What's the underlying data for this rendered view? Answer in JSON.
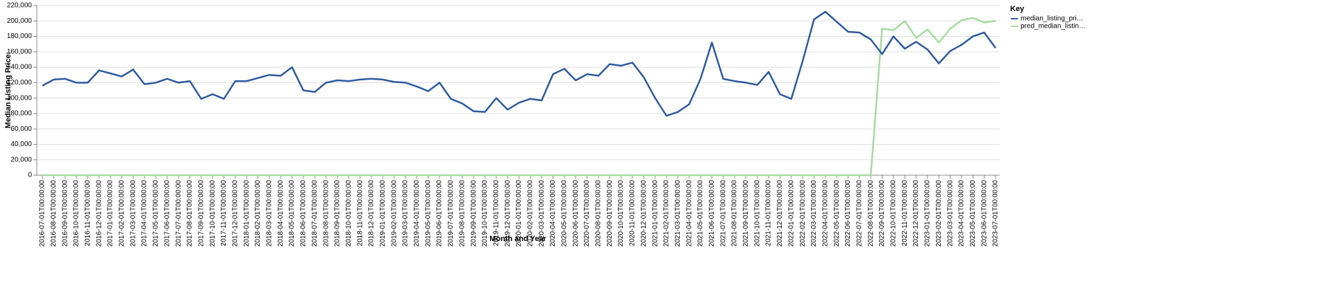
{
  "chart_data": {
    "type": "line",
    "x_label": "Month and Year",
    "y_label": "Median Listing Price:",
    "legend_title": "Key",
    "legend": "right",
    "grid": true,
    "categories": [
      "2016-07-01T00:00:00",
      "2016-08-01T00:00:00",
      "2016-09-01T00:00:00",
      "2016-10-01T00:00:00",
      "2016-11-01T00:00:00",
      "2016-12-01T00:00:00",
      "2017-01-01T00:00:00",
      "2017-02-01T00:00:00",
      "2017-03-01T00:00:00",
      "2017-04-01T00:00:00",
      "2017-05-01T00:00:00",
      "2017-06-01T00:00:00",
      "2017-07-01T00:00:00",
      "2017-08-01T00:00:00",
      "2017-09-01T00:00:00",
      "2017-10-01T00:00:00",
      "2017-11-01T00:00:00",
      "2017-12-01T00:00:00",
      "2018-01-01T00:00:00",
      "2018-02-01T00:00:00",
      "2018-03-01T00:00:00",
      "2018-04-01T00:00:00",
      "2018-05-01T00:00:00",
      "2018-06-01T00:00:00",
      "2018-07-01T00:00:00",
      "2018-08-01T00:00:00",
      "2018-09-01T00:00:00",
      "2018-10-01T00:00:00",
      "2018-11-01T00:00:00",
      "2018-12-01T00:00:00",
      "2019-01-01T00:00:00",
      "2019-02-01T00:00:00",
      "2019-03-01T00:00:00",
      "2019-04-01T00:00:00",
      "2019-05-01T00:00:00",
      "2019-06-01T00:00:00",
      "2019-07-01T00:00:00",
      "2019-08-01T00:00:00",
      "2019-09-01T00:00:00",
      "2019-10-01T00:00:00",
      "2019-11-01T00:00:00",
      "2019-12-01T00:00:00",
      "2020-01-01T00:00:00",
      "2020-02-01T00:00:00",
      "2020-03-01T00:00:00",
      "2020-04-01T00:00:00",
      "2020-05-01T00:00:00",
      "2020-06-01T00:00:00",
      "2020-07-01T00:00:00",
      "2020-08-01T00:00:00",
      "2020-09-01T00:00:00",
      "2020-10-01T00:00:00",
      "2020-11-01T00:00:00",
      "2020-12-01T00:00:00",
      "2021-01-01T00:00:00",
      "2021-02-01T00:00:00",
      "2021-03-01T00:00:00",
      "2021-04-01T00:00:00",
      "2021-05-01T00:00:00",
      "2021-06-01T00:00:00",
      "2021-07-01T00:00:00",
      "2021-08-01T00:00:00",
      "2021-09-01T00:00:00",
      "2021-10-01T00:00:00",
      "2021-11-01T00:00:00",
      "2021-12-01T00:00:00",
      "2022-01-01T00:00:00",
      "2022-02-01T00:00:00",
      "2022-03-01T00:00:00",
      "2022-04-01T00:00:00",
      "2022-05-01T00:00:00",
      "2022-06-01T00:00:00",
      "2022-07-01T00:00:00",
      "2022-08-01T00:00:00",
      "2022-09-01T00:00:00",
      "2022-10-01T00:00:00",
      "2022-11-01T00:00:00",
      "2022-12-01T00:00:00",
      "2023-01-01T00:00:00",
      "2023-02-01T00:00:00",
      "2023-03-01T00:00:00",
      "2023-04-01T00:00:00",
      "2023-05-01T00:00:00",
      "2023-06-01T00:00:00",
      "2023-07-01T00:00:00"
    ],
    "series": [
      {
        "name": "median_listing_pri…",
        "color": "#2c5aa0",
        "values": [
          116000,
          124000,
          125000,
          120000,
          120000,
          136000,
          132000,
          128000,
          137000,
          118000,
          120000,
          125000,
          120000,
          122000,
          99000,
          105000,
          99000,
          122000,
          122000,
          126000,
          130000,
          129000,
          140000,
          110000,
          108000,
          120000,
          123000,
          122000,
          124000,
          125000,
          124000,
          121000,
          120000,
          115000,
          109000,
          120000,
          99000,
          93000,
          83000,
          82000,
          100000,
          85000,
          94000,
          99000,
          97000,
          131000,
          138000,
          123000,
          131000,
          129000,
          144000,
          142000,
          146000,
          127000,
          100000,
          77000,
          82000,
          92000,
          125000,
          172000,
          125000,
          122000,
          120000,
          117000,
          134000,
          105000,
          99000,
          148000,
          202000,
          212000,
          199000,
          186000,
          185000,
          176000,
          157000,
          180000,
          164000,
          173000,
          163000,
          145000,
          161000,
          169000,
          180000,
          185000,
          165000
        ]
      },
      {
        "name": "pred_median_listin…",
        "color": "#a6dba0",
        "values": [
          0,
          0,
          0,
          0,
          0,
          0,
          0,
          0,
          0,
          0,
          0,
          0,
          0,
          0,
          0,
          0,
          0,
          0,
          0,
          0,
          0,
          0,
          0,
          0,
          0,
          0,
          0,
          0,
          0,
          0,
          0,
          0,
          0,
          0,
          0,
          0,
          0,
          0,
          0,
          0,
          0,
          0,
          0,
          0,
          0,
          0,
          0,
          0,
          0,
          0,
          0,
          0,
          0,
          0,
          0,
          0,
          0,
          0,
          0,
          0,
          0,
          0,
          0,
          0,
          0,
          0,
          0,
          0,
          0,
          0,
          0,
          0,
          0,
          0,
          190000,
          188000,
          200000,
          178000,
          189000,
          172000,
          190000,
          201000,
          204000,
          198000,
          200000
        ]
      }
    ],
    "ylim": [
      0,
      220000
    ],
    "yticks": [
      0,
      {
        "value": 20000,
        "label": "20,000"
      },
      {
        "value": 40000,
        "label": "40,000"
      },
      {
        "value": 60000,
        "label": "60,000"
      },
      {
        "value": 80000,
        "label": "80,000"
      },
      {
        "value": 100000,
        "label": "100,000"
      },
      {
        "value": 120000,
        "label": "120,000"
      },
      {
        "value": 140000,
        "label": "140,000"
      },
      {
        "value": 160000,
        "label": "160,000"
      },
      {
        "value": 180000,
        "label": "180,000"
      },
      {
        "value": 200000,
        "label": "200,000"
      },
      {
        "value": 220000,
        "label": "220,000"
      }
    ]
  }
}
